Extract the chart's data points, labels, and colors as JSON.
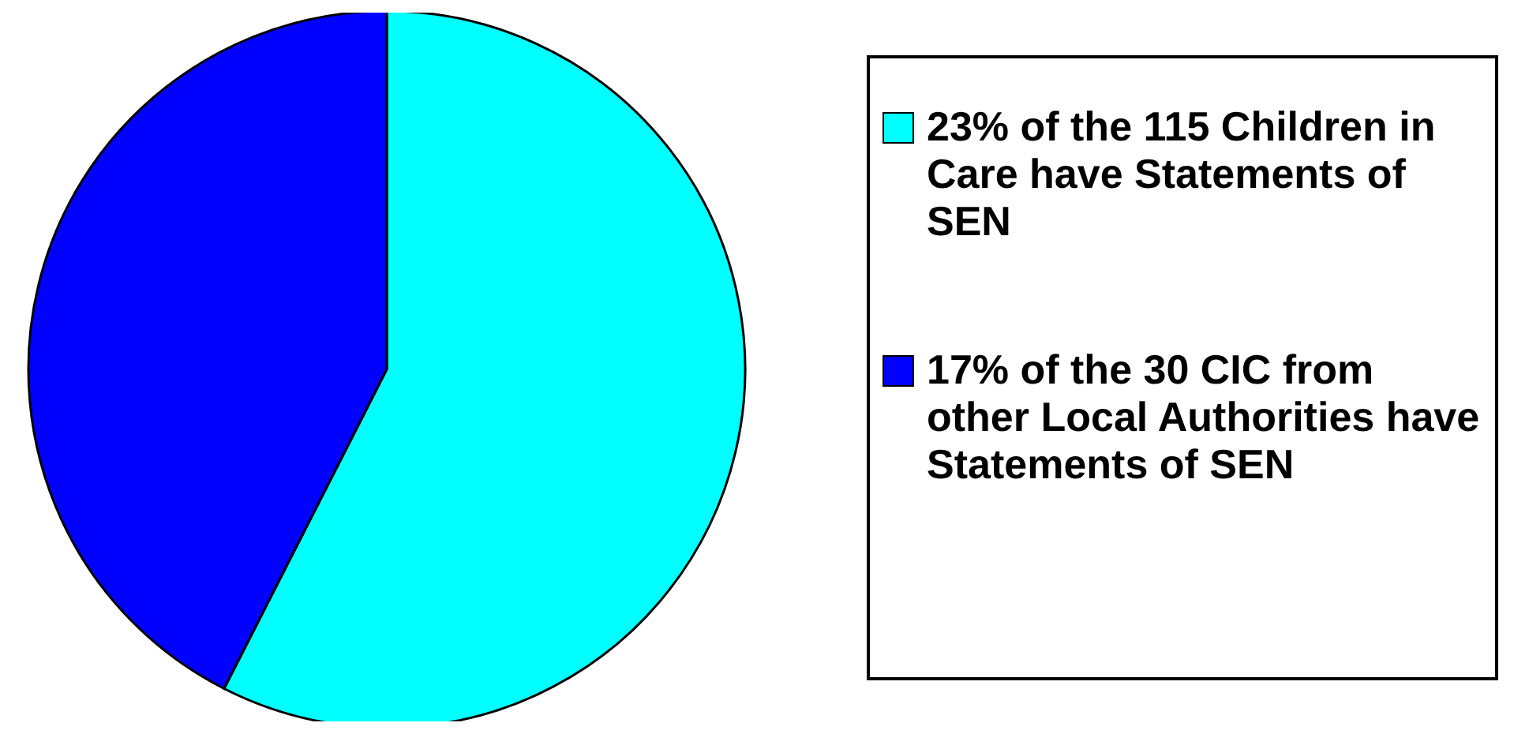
{
  "chart_data": {
    "type": "pie",
    "categories": [
      "23% of the 115 Children in Care have Statements of SEN",
      "17% of the 30 CIC from other Local Authorities have Statements of SEN"
    ],
    "values": [
      23,
      17
    ],
    "colors": [
      "#00ffff",
      "#0000ff"
    ],
    "legend": "right"
  }
}
